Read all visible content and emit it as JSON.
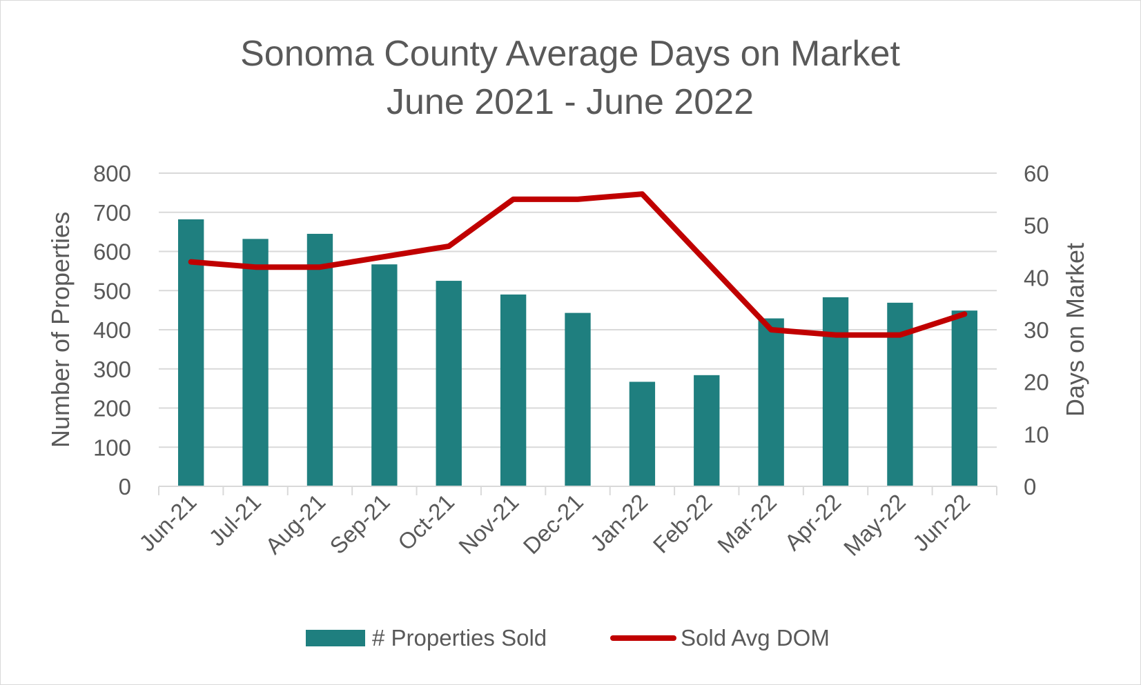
{
  "chart_data": {
    "type": "bar",
    "title": "Sonoma County Average Days on Market",
    "subtitle": "June 2021 - June 2022",
    "categories": [
      "Jun-21",
      "Jul-21",
      "Aug-21",
      "Sep-21",
      "Oct-21",
      "Nov-21",
      "Dec-21",
      "Jan-22",
      "Feb-22",
      "Mar-22",
      "Apr-22",
      "May-22",
      "Jun-22"
    ],
    "series": [
      {
        "name": "# Properties Sold",
        "type": "bar",
        "axis": "left",
        "color": "#1f7f7f",
        "values": [
          682,
          632,
          645,
          567,
          525,
          490,
          443,
          267,
          284,
          429,
          483,
          469,
          449
        ]
      },
      {
        "name": "Sold Avg DOM",
        "type": "line",
        "axis": "right",
        "color": "#c00000",
        "values": [
          43,
          42,
          42,
          44,
          46,
          55,
          55,
          56,
          43,
          30,
          29,
          29,
          33
        ]
      }
    ],
    "ylabel": "Number of Properties",
    "y2label": "Days on Market",
    "xlabel": "",
    "ylim": [
      0,
      800
    ],
    "y2lim": [
      0,
      60
    ],
    "yticks": [
      0,
      100,
      200,
      300,
      400,
      500,
      600,
      700,
      800
    ],
    "y2ticks": [
      0,
      10,
      20,
      30,
      40,
      50,
      60
    ],
    "grid": true,
    "legend_position": "bottom"
  }
}
